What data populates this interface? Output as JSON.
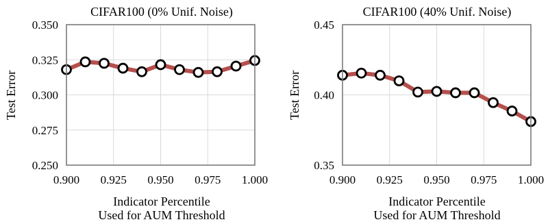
{
  "chart_data": [
    {
      "type": "line",
      "title": "CIFAR100 (0% Unif. Noise)",
      "xlabel": [
        "Indicator Percentile",
        "Used for AUM Threshold"
      ],
      "ylabel": "Test Error",
      "xlim": [
        0.9,
        1.0
      ],
      "ylim": [
        0.25,
        0.35
      ],
      "xticks": [
        "0.900",
        "0.925",
        "0.950",
        "0.975",
        "1.000"
      ],
      "yticks": [
        "0.250",
        "0.275",
        "0.300",
        "0.325",
        "0.350"
      ],
      "grid": true,
      "line_color": "#b5504d",
      "x": [
        0.9,
        0.91,
        0.92,
        0.93,
        0.94,
        0.95,
        0.96,
        0.97,
        0.98,
        0.99,
        1.0
      ],
      "y": [
        0.318,
        0.3235,
        0.3225,
        0.319,
        0.3165,
        0.3215,
        0.318,
        0.316,
        0.3165,
        0.3205,
        0.3245
      ]
    },
    {
      "type": "line",
      "title": "CIFAR100 (40% Unif. Noise)",
      "xlabel": [
        "Indicator Percentile",
        "Used for AUM Threshold"
      ],
      "ylabel": "Test Error",
      "xlim": [
        0.9,
        1.0
      ],
      "ylim": [
        0.35,
        0.45
      ],
      "xticks": [
        "0.900",
        "0.925",
        "0.950",
        "0.975",
        "1.000"
      ],
      "yticks": [
        "0.35",
        "0.40",
        "0.45"
      ],
      "grid": true,
      "line_color": "#b5504d",
      "x": [
        0.9,
        0.91,
        0.92,
        0.93,
        0.94,
        0.95,
        0.96,
        0.97,
        0.98,
        0.99,
        1.0
      ],
      "y": [
        0.414,
        0.4155,
        0.414,
        0.41,
        0.402,
        0.4025,
        0.4015,
        0.4015,
        0.3945,
        0.3885,
        0.381
      ]
    }
  ]
}
